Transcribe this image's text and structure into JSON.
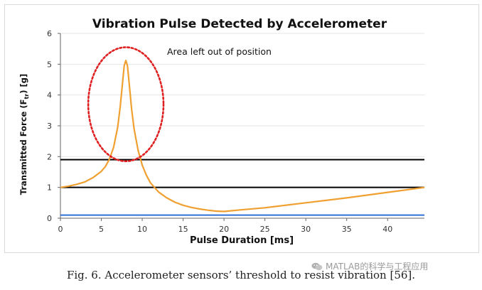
{
  "chart_data": {
    "type": "line",
    "title": "Vibration Pulse Detected by Accelerometer",
    "xlabel": "Pulse Duration [ms]",
    "ylabel": "Transmitted Force (F",
    "ylabel_sub": "tr",
    "ylabel_suffix": ") [g]",
    "xlim": [
      0,
      44.5
    ],
    "ylim": [
      0,
      6
    ],
    "x_ticks": [
      0,
      5,
      10,
      15,
      20,
      25,
      30,
      35,
      40
    ],
    "y_ticks": [
      0,
      1,
      2,
      3,
      4,
      5,
      6
    ],
    "grid": "horizontal",
    "annotation": "Area left out of position",
    "series": [
      {
        "color": "#f0a030",
        "x": [
          0,
          1,
          2,
          3,
          4,
          5,
          5.5,
          6,
          6.5,
          7,
          7.3,
          7.6,
          7.8,
          8,
          8.2,
          8.4,
          8.7,
          9,
          9.5,
          10,
          10.5,
          11,
          12,
          13,
          14,
          15,
          16,
          17,
          18,
          19,
          20,
          22,
          25,
          30,
          35,
          40,
          44.5
        ],
        "y": [
          1.0,
          1.04,
          1.1,
          1.18,
          1.32,
          1.52,
          1.68,
          1.92,
          2.3,
          2.95,
          3.6,
          4.4,
          4.95,
          5.12,
          4.95,
          4.4,
          3.55,
          2.9,
          2.2,
          1.72,
          1.4,
          1.15,
          0.85,
          0.66,
          0.52,
          0.42,
          0.35,
          0.3,
          0.26,
          0.23,
          0.22,
          0.27,
          0.34,
          0.5,
          0.66,
          0.84,
          1.0
        ]
      }
    ],
    "thresholds": [
      {
        "y": 1.9,
        "color": "#000000"
      },
      {
        "y": 1.0,
        "color": "#000000"
      },
      {
        "y": 0.1,
        "color": "#2e6fd8"
      }
    ],
    "highlight_ellipse": {
      "cx": 8,
      "cy": 3.7,
      "rx": 4.6,
      "ry": 1.85,
      "color": "#e02020"
    }
  },
  "caption": "Fig. 6. Accelerometer sensors’ threshold to resist vibration [56].",
  "watermark": "MATLAB的科学与工程应用"
}
